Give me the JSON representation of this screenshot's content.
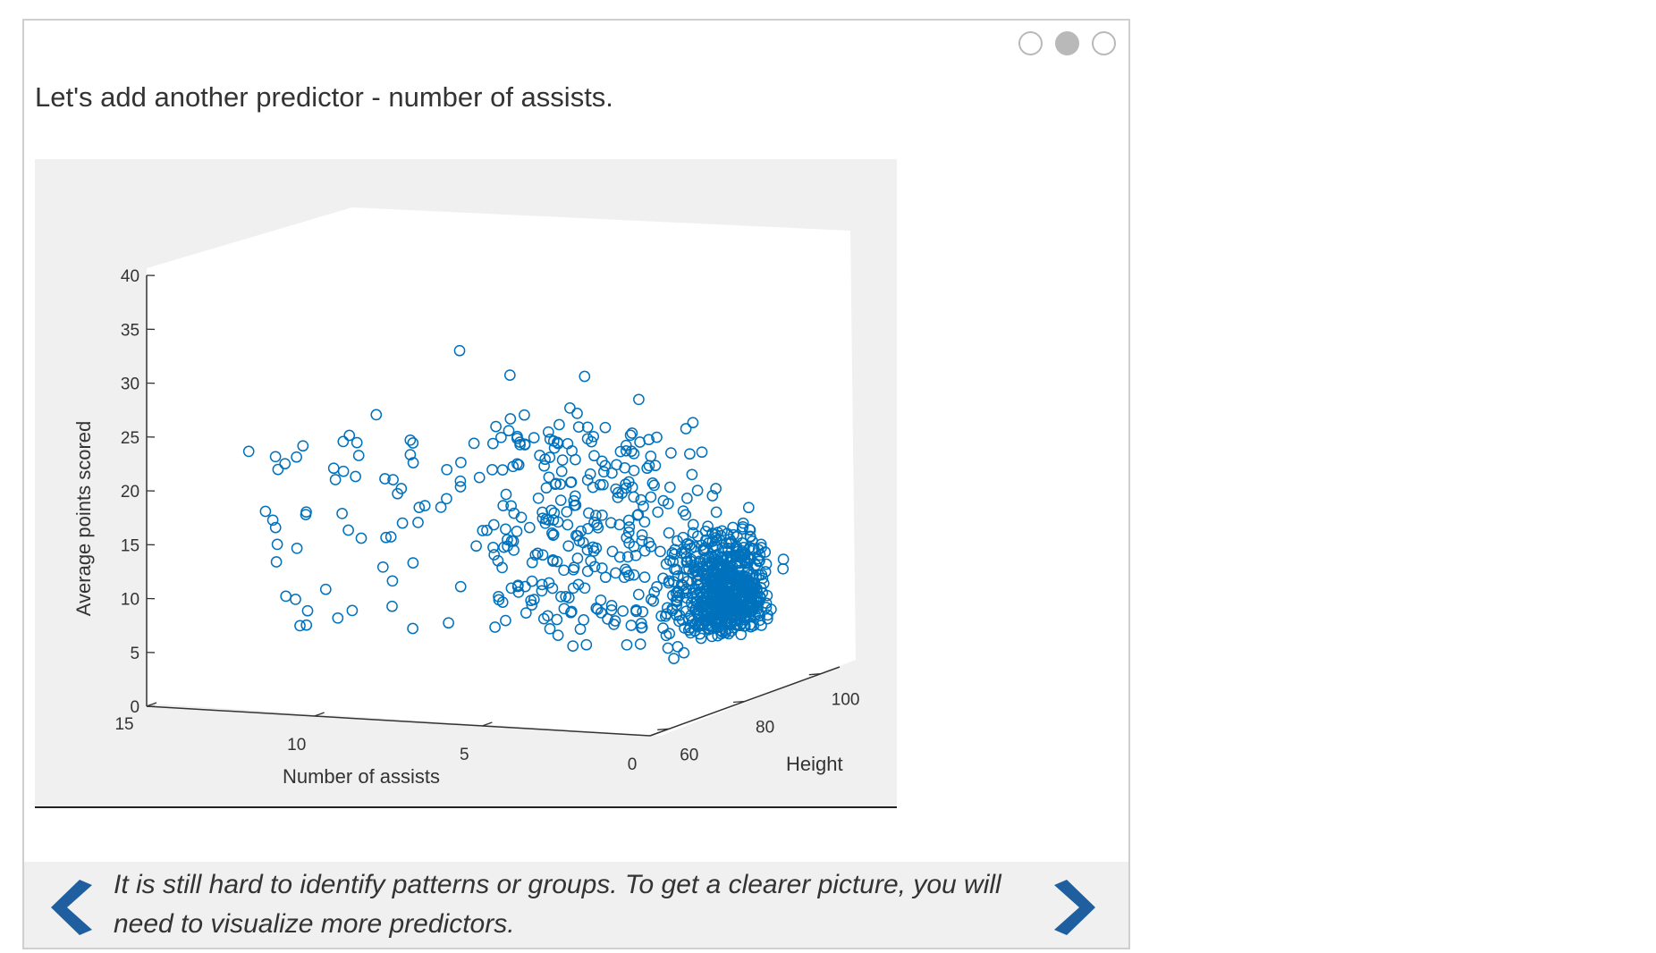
{
  "carousel": {
    "page_count": 3,
    "current_page": 2
  },
  "intro_text": "Let's add another predictor - number of assists.",
  "caption": "It is still hard to identify patterns or groups. To get a clearer picture, you will need to visualize more predictors.",
  "nav": {
    "prev_icon": "chevron-left-icon",
    "next_icon": "chevron-right-icon",
    "color": "#1f5f9f"
  },
  "chart_data": {
    "type": "scatter",
    "dimensions": 3,
    "marker": "open-circle",
    "marker_color": "#0072bd",
    "xlabel": "Number of assists",
    "ylabel": "Height",
    "zlabel": "Average points scored",
    "xlim": [
      0,
      15
    ],
    "ylim": [
      55,
      105
    ],
    "zlim": [
      0,
      40
    ],
    "xticks": [
      "15",
      "10",
      "5",
      "0"
    ],
    "yticks": [
      "60",
      "80",
      "100"
    ],
    "zticks": [
      "0",
      "5",
      "10",
      "15",
      "20",
      "25",
      "30",
      "35",
      "40"
    ],
    "grid": false,
    "points_note": "approximately 1000 points; dense cluster at low assists (0-2) and height 75-85, points range 2-31",
    "sample_points": [
      {
        "assists": 13.5,
        "height": 75,
        "points": 15
      },
      {
        "assists": 11.8,
        "height": 76,
        "points": 20
      },
      {
        "assists": 10.5,
        "height": 78,
        "points": 19
      },
      {
        "assists": 8.5,
        "height": 80,
        "points": 31
      },
      {
        "assists": 7.0,
        "height": 80,
        "points": 29
      },
      {
        "assists": 5.0,
        "height": 82,
        "points": 29
      },
      {
        "assists": 3.5,
        "height": 83,
        "points": 27
      },
      {
        "assists": 2.0,
        "height": 84,
        "points": 25
      },
      {
        "assists": 1.0,
        "height": 80,
        "points": 10
      },
      {
        "assists": 0.5,
        "height": 82,
        "points": 8
      },
      {
        "assists": 11.0,
        "height": 70,
        "points": 7
      },
      {
        "assists": 4.0,
        "height": 72,
        "points": 7
      }
    ]
  }
}
